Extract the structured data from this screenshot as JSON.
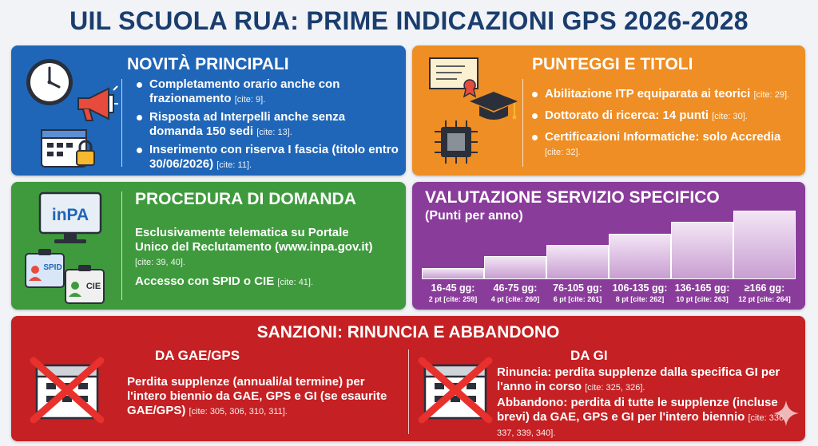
{
  "title": "UIL SCUOLA RUA: PRIME INDICAZIONI GPS 2026-2028",
  "novita": {
    "heading": "NOVITÀ PRINCIPALI",
    "items": [
      {
        "text": "Completamento orario anche con frazionamento",
        "cite": "[cite: 9]."
      },
      {
        "text": "Risposta ad Interpelli anche senza domanda 150 sedi",
        "cite": "[cite: 13]."
      },
      {
        "text": "Inserimento con riserva I fascia (titolo entro 30/06/2026)",
        "cite": "[cite: 11]."
      }
    ],
    "icons": [
      "clock-icon",
      "megaphone-icon",
      "calendar-lock-icon"
    ]
  },
  "punteggi": {
    "heading": "PUNTEGGI E TITOLI",
    "items": [
      {
        "text": "Abilitazione ITP equiparata ai teorici",
        "cite": "[cite: 29]."
      },
      {
        "text": "Dottorato di ricerca: 14 punti",
        "cite": "[cite: 30]."
      },
      {
        "text": "Certificazioni Informatiche: solo Accredia",
        "cite": "[cite: 32]."
      }
    ],
    "icons": [
      "diploma-icon",
      "graduation-cap-icon",
      "chip-icon"
    ]
  },
  "procedura": {
    "heading": "PROCEDURA DI DOMANDA",
    "monitor_text": "inPA",
    "spid_text": "SPID",
    "cie_text": "CIE",
    "p1_text": "Esclusivamente telematica su Portale Unico del Reclutamento (www.inpa.gov.it)",
    "p1_cite": "[cite: 39, 40].",
    "p2_text": "Accesso con SPID o CIE",
    "p2_cite": "[cite: 41]."
  },
  "valutazione": {
    "heading": "VALUTAZIONE SERVIZIO SPECIFICO",
    "subheading": "(Punti per anno)"
  },
  "chart_data": {
    "type": "bar",
    "title": "VALUTAZIONE SERVIZIO SPECIFICO",
    "subtitle": "(Punti per anno)",
    "categories": [
      "16-45 gg:",
      "46-75 gg:",
      "76-105 gg:",
      "106-135 gg:",
      "136-165 gg:",
      "≥166 gg:"
    ],
    "values": [
      2,
      4,
      6,
      8,
      10,
      12
    ],
    "sub_labels": [
      "2 pt [cite: 259]",
      "4 pt [cite: 260]",
      "6 pt [cite: 261]",
      "8 pt [cite: 262]",
      "10 pt [cite: 263]",
      "12 pt [cite: 264]"
    ],
    "ylim": [
      0,
      12
    ]
  },
  "sanzioni": {
    "heading": "SANZIONI: RINUNCIA E ABBANDONO",
    "left": {
      "heading": "DA GAE/GPS",
      "text": "Perdita supplenze (annuali/al termine) per l'intero biennio da GAE, GPS e GI (se esaurite GAE/GPS)",
      "cite": "[cite: 305, 306, 310, 311]."
    },
    "right": {
      "heading": "DA GI",
      "rinuncia_label": "Rinuncia:",
      "rinuncia_text": " perdita supplenze dalla specifica GI per l'anno in corso",
      "rinuncia_cite": "[cite: 325, 326].",
      "abbandono_label": "Abbandono:",
      "abbandono_text": " perdita di tutte le supplenze (incluse brevi) da GAE, GPS e GI per l'intero biennio",
      "abbandono_cite": "[cite: 336, 337, 339, 340]."
    }
  },
  "colors": {
    "title": "#1a3d6e",
    "blue": "#2066b8",
    "orange": "#ee8e24",
    "green": "#3f9a3d",
    "purple": "#8a3c9b",
    "red": "#c52023"
  }
}
